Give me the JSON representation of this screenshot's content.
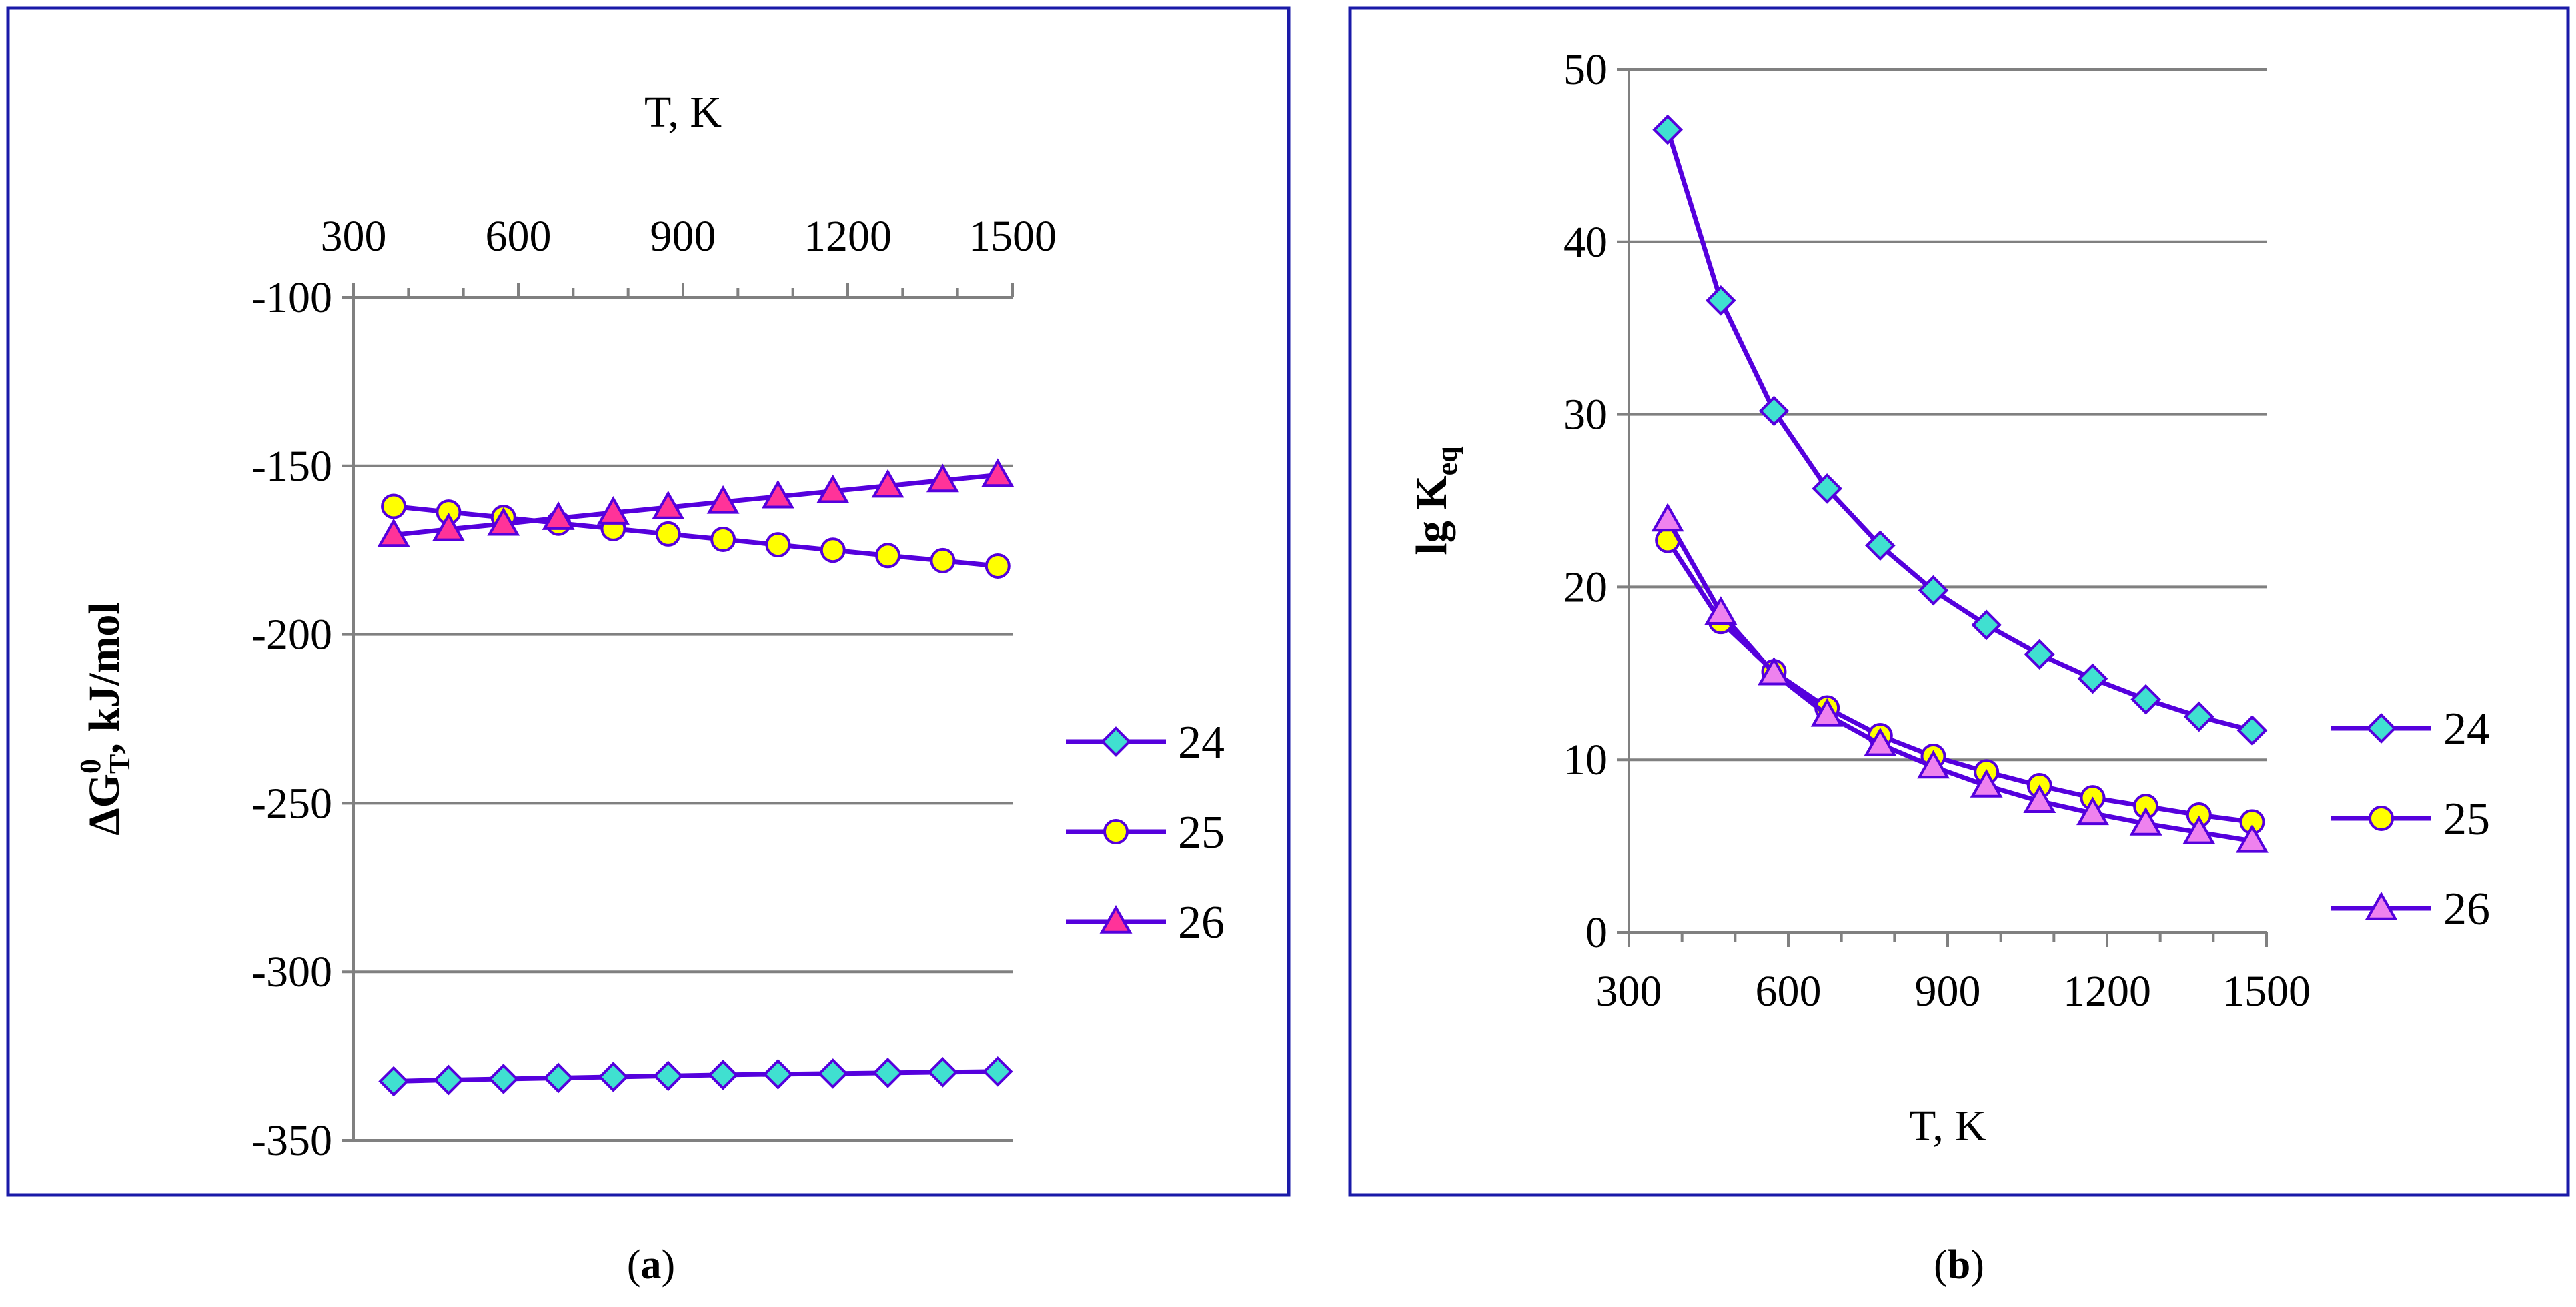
{
  "chart_data": [
    {
      "panel": "a",
      "type": "line",
      "xlabel": "T, K",
      "ylabel_main": "ΔG",
      "ylabel_sup": "0",
      "ylabel_sub": "T",
      "ylabel_rest": ", kJ/mol",
      "xlim": [
        300,
        1500
      ],
      "ylim": [
        -350,
        -100
      ],
      "xticks": [
        300,
        600,
        900,
        1200,
        1500
      ],
      "yticks": [
        -100,
        -150,
        -200,
        -250,
        -300,
        -350
      ],
      "x_axis_position": "top",
      "x": [
        373,
        473,
        573,
        673,
        773,
        873,
        973,
        1073,
        1173,
        1273,
        1373,
        1473
      ],
      "series": [
        {
          "name": "24",
          "marker": "diamond",
          "fill": "#40E0D0",
          "values": [
            -332.5,
            -332.1,
            -331.8,
            -331.5,
            -331.2,
            -330.9,
            -330.6,
            -330.4,
            -330.2,
            -330.0,
            -329.8,
            -329.6
          ]
        },
        {
          "name": "25",
          "marker": "circle",
          "fill": "#FFFF00",
          "values": [
            -162.0,
            -163.7,
            -165.3,
            -167.0,
            -168.6,
            -170.2,
            -171.8,
            -173.4,
            -175.0,
            -176.6,
            -178.1,
            -179.7
          ]
        },
        {
          "name": "26",
          "marker": "triangle",
          "fill": "#FF3399",
          "values": [
            -170.5,
            -168.8,
            -167.2,
            -165.5,
            -163.9,
            -162.3,
            -160.7,
            -159.1,
            -157.5,
            -155.9,
            -154.3,
            -152.7
          ]
        }
      ],
      "legend_position": "right",
      "caption": "a"
    },
    {
      "panel": "b",
      "type": "line",
      "xlabel": "T, K",
      "ylabel_main": "lg K",
      "ylabel_sub": "eq",
      "xlim": [
        300,
        1500
      ],
      "ylim": [
        0,
        50
      ],
      "xticks": [
        300,
        600,
        900,
        1200,
        1500
      ],
      "yticks": [
        0,
        10,
        20,
        30,
        40,
        50
      ],
      "x_axis_position": "bottom",
      "x": [
        373,
        473,
        573,
        673,
        773,
        873,
        973,
        1073,
        1173,
        1273,
        1373,
        1473
      ],
      "series": [
        {
          "name": "24",
          "marker": "diamond",
          "fill": "#40E0D0",
          "values": [
            46.5,
            36.6,
            30.2,
            25.7,
            22.4,
            19.8,
            17.8,
            16.1,
            14.7,
            13.5,
            12.5,
            11.7
          ]
        },
        {
          "name": "25",
          "marker": "circle",
          "fill": "#FFFF00",
          "values": [
            22.7,
            18.0,
            15.1,
            13.0,
            11.4,
            10.2,
            9.3,
            8.5,
            7.8,
            7.3,
            6.8,
            6.4
          ]
        },
        {
          "name": "26",
          "marker": "triangle",
          "fill": "#EE82EE",
          "values": [
            23.9,
            18.5,
            15.0,
            12.6,
            10.9,
            9.6,
            8.5,
            7.6,
            6.9,
            6.3,
            5.8,
            5.3
          ]
        }
      ],
      "legend_position": "right",
      "caption": "b"
    }
  ],
  "colors": {
    "line": "#5500DD",
    "marker_stroke": "#5500DD",
    "frame": "#1a1aa8",
    "grid": "#808080"
  }
}
